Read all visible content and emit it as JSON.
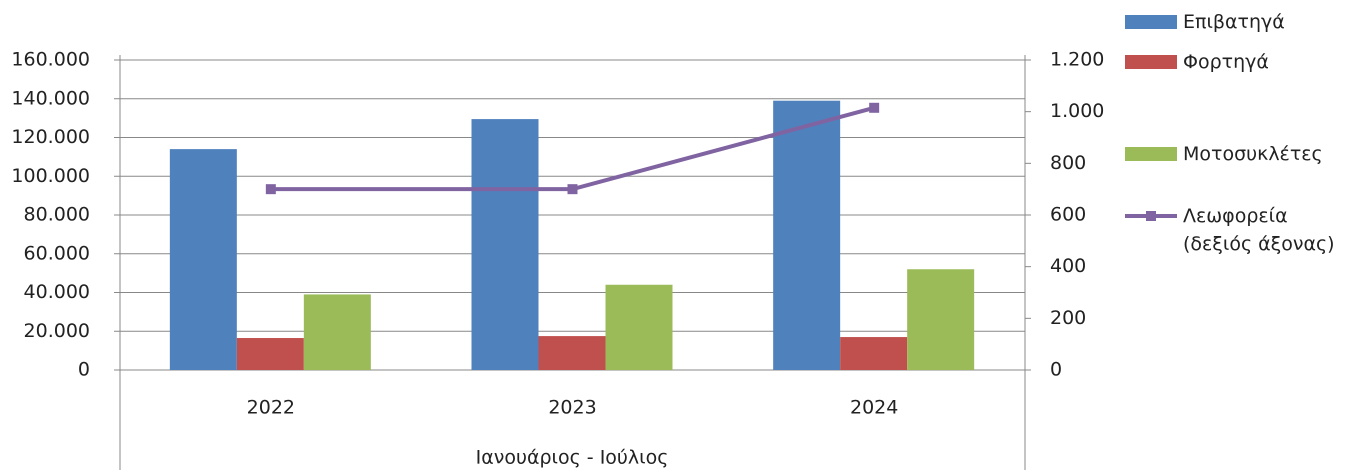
{
  "chart_data": {
    "type": "bar",
    "x_label": "Ιανουάριος - Ιούλιος",
    "categories": [
      "2022",
      "2023",
      "2024"
    ],
    "series": [
      {
        "name": "Επιβατηγά",
        "color": "#4f81bd",
        "values": [
          114000,
          129500,
          139000
        ]
      },
      {
        "name": "Φορτηγά",
        "color": "#c0504d",
        "values": [
          16500,
          17500,
          17000
        ]
      },
      {
        "name": "Μοτοσυκλέτες",
        "color": "#9bbb59",
        "values": [
          39000,
          44000,
          52000
        ]
      },
      {
        "name": "Λεωφορεία\n(δεξιός άξονας)",
        "type": "line",
        "axis": "y2",
        "color": "#8064a2",
        "values": [
          700,
          700,
          1015
        ]
      }
    ],
    "ylim": [
      0,
      160000
    ],
    "yticks": [
      0,
      {
        "value": 20000,
        "label": "20.000"
      },
      {
        "value": 40000,
        "label": "40.000"
      },
      {
        "value": 60000,
        "label": "60.000"
      },
      {
        "value": 80000,
        "label": "80.000"
      },
      {
        "value": 100000,
        "label": "100.000"
      },
      {
        "value": 120000,
        "label": "120.000"
      },
      {
        "value": 140000,
        "label": "140.000"
      },
      {
        "value": 160000,
        "label": "160.000"
      }
    ],
    "y2lim": [
      0,
      1200
    ],
    "y2ticks": [
      0,
      200,
      400,
      600,
      800,
      {
        "value": 1000,
        "label": "1.000"
      },
      {
        "value": 1200,
        "label": "1.200"
      }
    ],
    "grid": true
  }
}
